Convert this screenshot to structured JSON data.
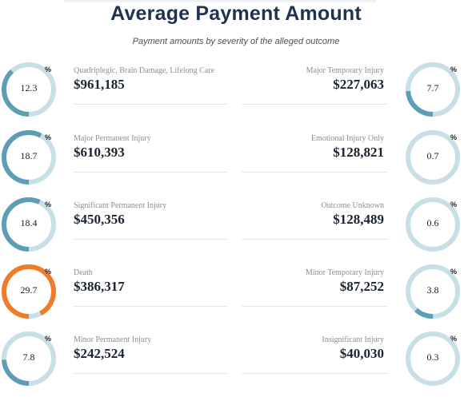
{
  "title": "Average Payment Amount",
  "subtitle": "Payment amounts by severity of the alleged outcome",
  "percent_symbol": "%",
  "colors": {
    "track": "#c8dfe8",
    "blue": "#5e9db6",
    "orange": "#f07c2a",
    "title": "#1e3350"
  },
  "rows": [
    {
      "left": {
        "label": "Quadriplegic, Brain Damage, Lifelong Care",
        "amount": "$961,185",
        "percent": "12.3",
        "fraction": 0.123,
        "color": "blue"
      },
      "right": {
        "label": "Major Temporary Injury",
        "amount": "$227,063",
        "percent": "7.7",
        "fraction": 0.077,
        "color": "blue"
      }
    },
    {
      "left": {
        "label": "Major Permanent Injury",
        "amount": "$610,393",
        "percent": "18.7",
        "fraction": 0.187,
        "color": "blue"
      },
      "right": {
        "label": "Emotional Injury Only",
        "amount": "$128,821",
        "percent": "0.7",
        "fraction": 0.007,
        "color": "blue"
      }
    },
    {
      "left": {
        "label": "Significant Permanent Injury",
        "amount": "$450,356",
        "percent": "18.4",
        "fraction": 0.184,
        "color": "blue"
      },
      "right": {
        "label": "Outcome Unknown",
        "amount": "$128,489",
        "percent": "0.6",
        "fraction": 0.006,
        "color": "blue"
      }
    },
    {
      "left": {
        "label": "Death",
        "amount": "$386,317",
        "percent": "29.7",
        "fraction": 0.297,
        "color": "orange"
      },
      "right": {
        "label": "Minor Temporary Injury",
        "amount": "$87,252",
        "percent": "3.8",
        "fraction": 0.038,
        "color": "blue"
      }
    },
    {
      "left": {
        "label": "Minor Permanent Injury",
        "amount": "$242,524",
        "percent": "7.8",
        "fraction": 0.078,
        "color": "blue"
      },
      "right": {
        "label": "Insignificant Injury",
        "amount": "$40,030",
        "percent": "0.3",
        "fraction": 0.003,
        "color": "blue"
      }
    }
  ]
}
